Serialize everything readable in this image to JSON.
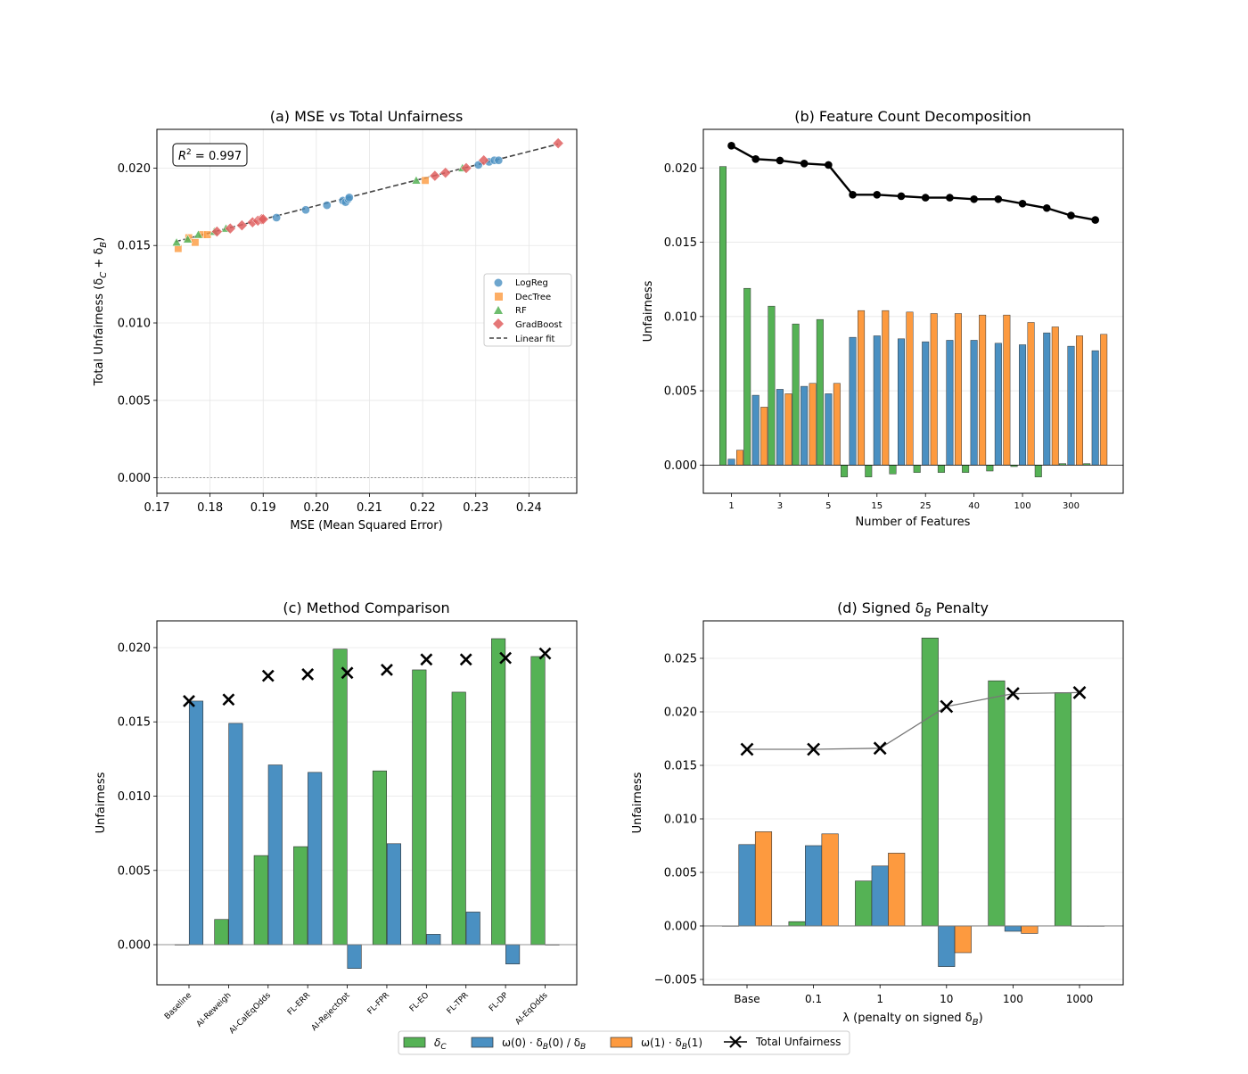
{
  "colors": {
    "green": "#55b255",
    "blue": "#4a90c2",
    "orange": "#fd9a3f",
    "red": "#e06060",
    "black": "#000000"
  },
  "legend": {
    "delta_c": "δ",
    "delta_c_sub": "C",
    "delta_b0": "ω(0) · δ",
    "delta_b0_sub": "B",
    "delta_b0_tail": "(0) / δ",
    "delta_b0_tail_sub": "B",
    "delta_b1": "ω(1) · δ",
    "delta_b1_sub": "B",
    "delta_b1_tail": "(1)",
    "total": "Total Unfairness"
  },
  "chart_data": [
    {
      "id": "a",
      "type": "scatter",
      "title": "(a) MSE vs Total Unfairness",
      "xlabel": "MSE (Mean Squared Error)",
      "ylabel_main": "Total Unfairness (δ",
      "ylabel_sub1": "C",
      "ylabel_mid": " + δ",
      "ylabel_sub2": "B",
      "ylabel_end": ")",
      "xlim": [
        0.17,
        0.249
      ],
      "ylim": [
        -0.001,
        0.0225
      ],
      "xticks": [
        0.17,
        0.18,
        0.19,
        0.2,
        0.21,
        0.22,
        0.23,
        0.24
      ],
      "xticklabels": [
        "0.17",
        "0.18",
        "0.19",
        "0.20",
        "0.21",
        "0.22",
        "0.23",
        "0.24"
      ],
      "yticks": [
        0.0,
        0.005,
        0.01,
        0.015,
        0.02
      ],
      "yticklabels": [
        "0.000",
        "0.005",
        "0.010",
        "0.015",
        "0.020"
      ],
      "annotation": "R",
      "annotation_sup": "2",
      "annotation_value": " = 0.997",
      "fit": {
        "x": [
          0.1735,
          0.2455
        ],
        "y": [
          0.01525,
          0.02155
        ]
      },
      "legend_labels": [
        "LogReg",
        "DecTree",
        "RF",
        "GradBoost",
        "Linear fit"
      ],
      "series": [
        {
          "name": "LogReg",
          "marker": "circle",
          "x": [
            0.1925,
            0.198,
            0.202,
            0.205,
            0.2055,
            0.206,
            0.2062,
            0.2305,
            0.2325,
            0.2335,
            0.2343
          ],
          "y": [
            0.0168,
            0.0173,
            0.0176,
            0.0179,
            0.0178,
            0.018,
            0.0181,
            0.0202,
            0.0204,
            0.0205,
            0.0205
          ]
        },
        {
          "name": "DecTree",
          "marker": "square",
          "x": [
            0.174,
            0.176,
            0.1772,
            0.1785,
            0.1795,
            0.2205
          ],
          "y": [
            0.0148,
            0.0155,
            0.0152,
            0.0157,
            0.0157,
            0.0192
          ]
        },
        {
          "name": "RF",
          "marker": "triangle",
          "x": [
            0.1737,
            0.1758,
            0.1778,
            0.1808,
            0.183,
            0.2188,
            0.2275
          ],
          "y": [
            0.0152,
            0.0154,
            0.0157,
            0.0159,
            0.0161,
            0.0192,
            0.02
          ]
        },
        {
          "name": "GradBoost",
          "marker": "diamond",
          "x": [
            0.1813,
            0.1838,
            0.186,
            0.188,
            0.189,
            0.1897,
            0.19,
            0.2223,
            0.2243,
            0.2282,
            0.2315,
            0.2455
          ],
          "y": [
            0.0159,
            0.0161,
            0.0163,
            0.0165,
            0.0166,
            0.0167,
            0.0167,
            0.0195,
            0.0197,
            0.02,
            0.0205,
            0.0216
          ]
        }
      ]
    },
    {
      "id": "b",
      "type": "bar",
      "title": "(b) Feature Count Decomposition",
      "xlabel": "Number of Features",
      "ylabel": "Unfairness",
      "ylim": [
        -0.0019,
        0.0226
      ],
      "yticks": [
        0.0,
        0.005,
        0.01,
        0.015,
        0.02
      ],
      "yticklabels": [
        "0.000",
        "0.005",
        "0.010",
        "0.015",
        "0.020"
      ],
      "xticks": [
        0,
        2,
        4,
        6,
        8,
        10,
        12,
        14
      ],
      "xticklabels": [
        "1",
        "3",
        "5",
        "15",
        "25",
        "40",
        "100",
        "300"
      ],
      "n_groups": 16,
      "series": [
        {
          "name": "δ_C",
          "color": "green",
          "values": [
            0.0201,
            0.0119,
            0.0107,
            0.0095,
            0.0098,
            -0.0008,
            -0.0008,
            -0.0006,
            -0.0005,
            -0.0005,
            -0.0005,
            -0.0004,
            -0.0001,
            -0.0008,
            0.0001,
            0.0001
          ]
        },
        {
          "name": "ω(0)·δ_B(0)/δ_B",
          "color": "blue",
          "values": [
            0.0004,
            0.0047,
            0.0051,
            0.0053,
            0.0048,
            0.0086,
            0.0087,
            0.0085,
            0.0083,
            0.0084,
            0.0084,
            0.0082,
            0.0081,
            0.0089,
            0.008,
            0.0077
          ]
        },
        {
          "name": "ω(1)·δ_B(1)",
          "color": "orange",
          "values": [
            0.001,
            0.0039,
            0.0048,
            0.0055,
            0.0055,
            0.0104,
            0.0104,
            0.0103,
            0.0102,
            0.0102,
            0.0101,
            0.0101,
            0.0096,
            0.0093,
            0.0087,
            0.0088
          ]
        }
      ],
      "total": [
        0.0215,
        0.0206,
        0.0205,
        0.0203,
        0.0202,
        0.0182,
        0.0182,
        0.0181,
        0.018,
        0.018,
        0.0179,
        0.0179,
        0.0176,
        0.0173,
        0.0168,
        0.0165
      ]
    },
    {
      "id": "c",
      "type": "bar",
      "title": "(c) Method Comparison",
      "ylabel": "Unfairness",
      "xlabel": "",
      "ylim": [
        -0.0027,
        0.0218
      ],
      "yticks": [
        0.0,
        0.005,
        0.01,
        0.015,
        0.02
      ],
      "yticklabels": [
        "0.000",
        "0.005",
        "0.010",
        "0.015",
        "0.020"
      ],
      "categories": [
        "Baseline",
        "AI-Reweigh",
        "AI-CalEqOdds",
        "FL-ERR",
        "AI-RejectOpt",
        "FL-FPR",
        "FL-EO",
        "FL-TPR",
        "FL-DP",
        "AI-EqOdds"
      ],
      "series": [
        {
          "name": "δ_C",
          "color": "green",
          "values": [
            0.0,
            0.0017,
            0.006,
            0.0066,
            0.0199,
            0.0117,
            0.0185,
            0.017,
            0.0206,
            0.0194
          ]
        },
        {
          "name": "ω(0)·δ_B(0)/δ_B",
          "color": "blue",
          "values": [
            0.0164,
            0.0149,
            0.0121,
            0.0116,
            -0.0016,
            0.0068,
            0.0007,
            0.0022,
            -0.0013,
            0.0
          ]
        }
      ],
      "total": [
        0.0164,
        0.0165,
        0.0181,
        0.0182,
        0.0183,
        0.0185,
        0.0192,
        0.0192,
        0.0193,
        0.0196
      ]
    },
    {
      "id": "d",
      "type": "bar",
      "title": "(d) Signed δ",
      "title_sub": "B",
      "title_end": " Penalty",
      "xlabel_main": "λ (penalty on signed δ",
      "xlabel_sub": "B",
      "xlabel_end": ")",
      "ylabel": "Unfairness",
      "ylim": [
        -0.0055,
        0.0285
      ],
      "yticks": [
        -0.005,
        0.0,
        0.005,
        0.01,
        0.015,
        0.02,
        0.025
      ],
      "yticklabels": [
        "−0.005",
        "0.000",
        "0.005",
        "0.010",
        "0.015",
        "0.020",
        "0.025"
      ],
      "categories": [
        "Base",
        "0.1",
        "1",
        "10",
        "100",
        "1000"
      ],
      "series": [
        {
          "name": "δ_C",
          "color": "green",
          "values": [
            0.0,
            0.0004,
            0.0042,
            0.0269,
            0.0229,
            0.0218
          ]
        },
        {
          "name": "ω(0)·δ_B(0)/δ_B",
          "color": "blue",
          "values": [
            0.0076,
            0.0075,
            0.0056,
            -0.0038,
            -0.0005,
            0.0
          ]
        },
        {
          "name": "ω(1)·δ_B(1)",
          "color": "orange",
          "values": [
            0.0088,
            0.0086,
            0.0068,
            -0.0025,
            -0.0007,
            0.0
          ]
        }
      ],
      "total": [
        0.0165,
        0.0165,
        0.0166,
        0.0205,
        0.0217,
        0.0218
      ]
    }
  ]
}
